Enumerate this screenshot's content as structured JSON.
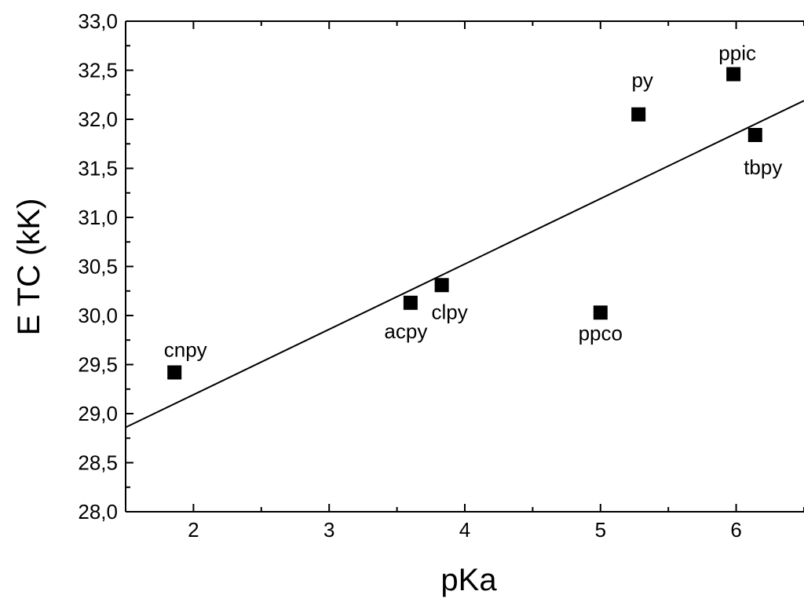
{
  "chart_data": {
    "type": "scatter",
    "xlabel": "pKa",
    "ylabel": "E TC (kK)",
    "xlim": [
      1.5,
      6.5
    ],
    "ylim": [
      28.0,
      33.0
    ],
    "x_ticks": [
      "2",
      "3",
      "4",
      "5",
      "6"
    ],
    "y_ticks": [
      "28,0",
      "28,5",
      "29,0",
      "29,5",
      "30,0",
      "30,5",
      "31,0",
      "31,5",
      "32,0",
      "32,5",
      "33,0"
    ],
    "points": [
      {
        "label": "cnpy",
        "x": 1.86,
        "y": 29.42
      },
      {
        "label": "acpy",
        "x": 3.6,
        "y": 30.13
      },
      {
        "label": "clpy",
        "x": 3.83,
        "y": 30.31
      },
      {
        "label": "ppco",
        "x": 5.0,
        "y": 30.03
      },
      {
        "label": "py",
        "x": 5.28,
        "y": 32.05
      },
      {
        "label": "ppic",
        "x": 5.98,
        "y": 32.46
      },
      {
        "label": "tbpy",
        "x": 6.14,
        "y": 31.84
      }
    ],
    "fit_line": {
      "x": [
        1.5,
        6.5
      ],
      "y": [
        28.86,
        32.19
      ]
    },
    "marker": "square",
    "grid": false,
    "legend": "none"
  }
}
